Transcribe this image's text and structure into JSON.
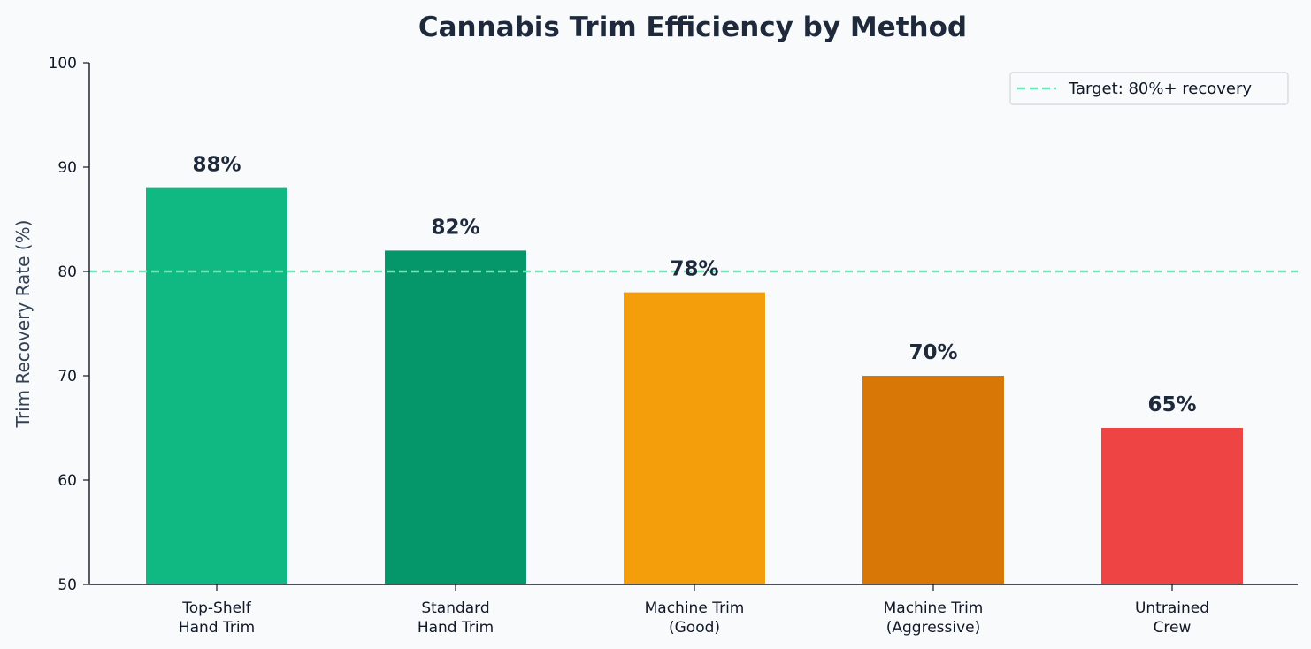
{
  "chart_data": {
    "type": "bar",
    "title": "Cannabis Trim Efficiency by Method",
    "xlabel": "",
    "ylabel": "Trim Recovery Rate (%)",
    "ylim": [
      50,
      100
    ],
    "yticks": [
      50,
      60,
      70,
      80,
      90,
      100
    ],
    "categories": [
      [
        "Top-Shelf",
        "Hand Trim"
      ],
      [
        "Standard",
        "Hand Trim"
      ],
      [
        "Machine Trim",
        "(Good)"
      ],
      [
        "Machine Trim",
        "(Aggressive)"
      ],
      [
        "Untrained",
        "Crew"
      ]
    ],
    "values": [
      88,
      82,
      78,
      70,
      65
    ],
    "data_labels": [
      "88%",
      "82%",
      "78%",
      "70%",
      "65%"
    ],
    "colors": [
      "#10b981",
      "#059669",
      "#f59e0b",
      "#d97706",
      "#ef4444"
    ],
    "reference_line": {
      "value": 80,
      "label": "Target: 80%+ recovery",
      "color": "#6ee7b7",
      "style": "dashed"
    },
    "legend": {
      "position": "top-right",
      "entries": [
        "Target: 80%+ recovery"
      ]
    },
    "grid": false
  }
}
